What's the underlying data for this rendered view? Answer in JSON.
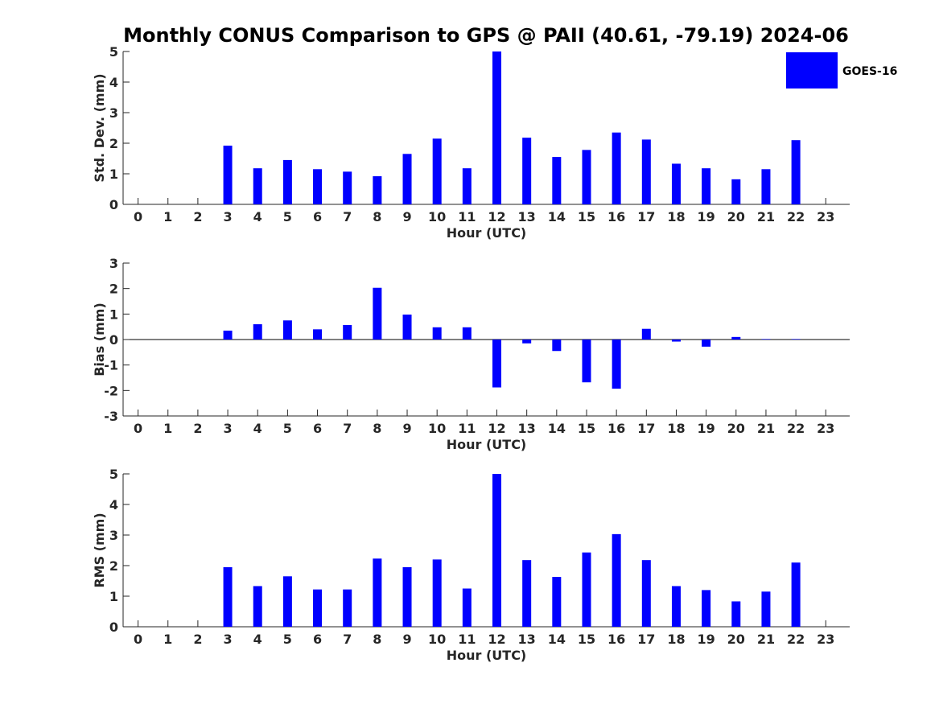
{
  "chart_data": [
    {
      "type": "bar",
      "title": "Monthly CONUS Comparison to GPS @ PAII (40.61, -79.19) 2024-06",
      "xlabel": "Hour (UTC)",
      "ylabel": "Std. Dev. (mm)",
      "xlim": [
        -0.5,
        23.8
      ],
      "ylim": [
        0,
        5
      ],
      "yticks": [
        0,
        1,
        2,
        3,
        4,
        5
      ],
      "categories": [
        0,
        1,
        2,
        3,
        4,
        5,
        6,
        7,
        8,
        9,
        10,
        11,
        12,
        13,
        14,
        15,
        16,
        17,
        18,
        19,
        20,
        21,
        22,
        23
      ],
      "series": [
        {
          "name": "GOES-16",
          "color": "#0000ff",
          "values": [
            null,
            null,
            null,
            1.92,
            1.18,
            1.45,
            1.15,
            1.07,
            0.92,
            1.65,
            2.15,
            1.18,
            5.0,
            2.18,
            1.55,
            1.78,
            2.35,
            2.12,
            1.33,
            1.18,
            0.82,
            1.15,
            2.1,
            null
          ]
        }
      ],
      "legend": {
        "label": "GOES-16",
        "position": "top-right"
      }
    },
    {
      "type": "bar",
      "xlabel": "Hour (UTC)",
      "ylabel": "Bias (mm)",
      "xlim": [
        -0.5,
        23.8
      ],
      "ylim": [
        -3,
        3
      ],
      "yticks": [
        -3,
        -2,
        -1,
        0,
        1,
        2,
        3
      ],
      "categories": [
        0,
        1,
        2,
        3,
        4,
        5,
        6,
        7,
        8,
        9,
        10,
        11,
        12,
        13,
        14,
        15,
        16,
        17,
        18,
        19,
        20,
        21,
        22,
        23
      ],
      "series": [
        {
          "name": "GOES-16",
          "color": "#0000ff",
          "values": [
            null,
            null,
            null,
            0.35,
            0.6,
            0.75,
            0.4,
            0.57,
            2.03,
            0.98,
            0.48,
            0.48,
            -1.88,
            -0.15,
            -0.45,
            -1.68,
            -1.93,
            0.42,
            -0.08,
            -0.28,
            0.1,
            0.02,
            0.02,
            null
          ]
        }
      ]
    },
    {
      "type": "bar",
      "xlabel": "Hour (UTC)",
      "ylabel": "RMS (mm)",
      "xlim": [
        -0.5,
        23.8
      ],
      "ylim": [
        0,
        5
      ],
      "yticks": [
        0,
        1,
        2,
        3,
        4,
        5
      ],
      "categories": [
        0,
        1,
        2,
        3,
        4,
        5,
        6,
        7,
        8,
        9,
        10,
        11,
        12,
        13,
        14,
        15,
        16,
        17,
        18,
        19,
        20,
        21,
        22,
        23
      ],
      "series": [
        {
          "name": "GOES-16",
          "color": "#0000ff",
          "values": [
            null,
            null,
            null,
            1.95,
            1.33,
            1.65,
            1.22,
            1.22,
            2.23,
            1.95,
            2.2,
            1.25,
            5.0,
            2.18,
            1.63,
            2.43,
            3.03,
            2.18,
            1.33,
            1.2,
            0.83,
            1.15,
            2.1,
            null
          ]
        }
      ]
    }
  ]
}
